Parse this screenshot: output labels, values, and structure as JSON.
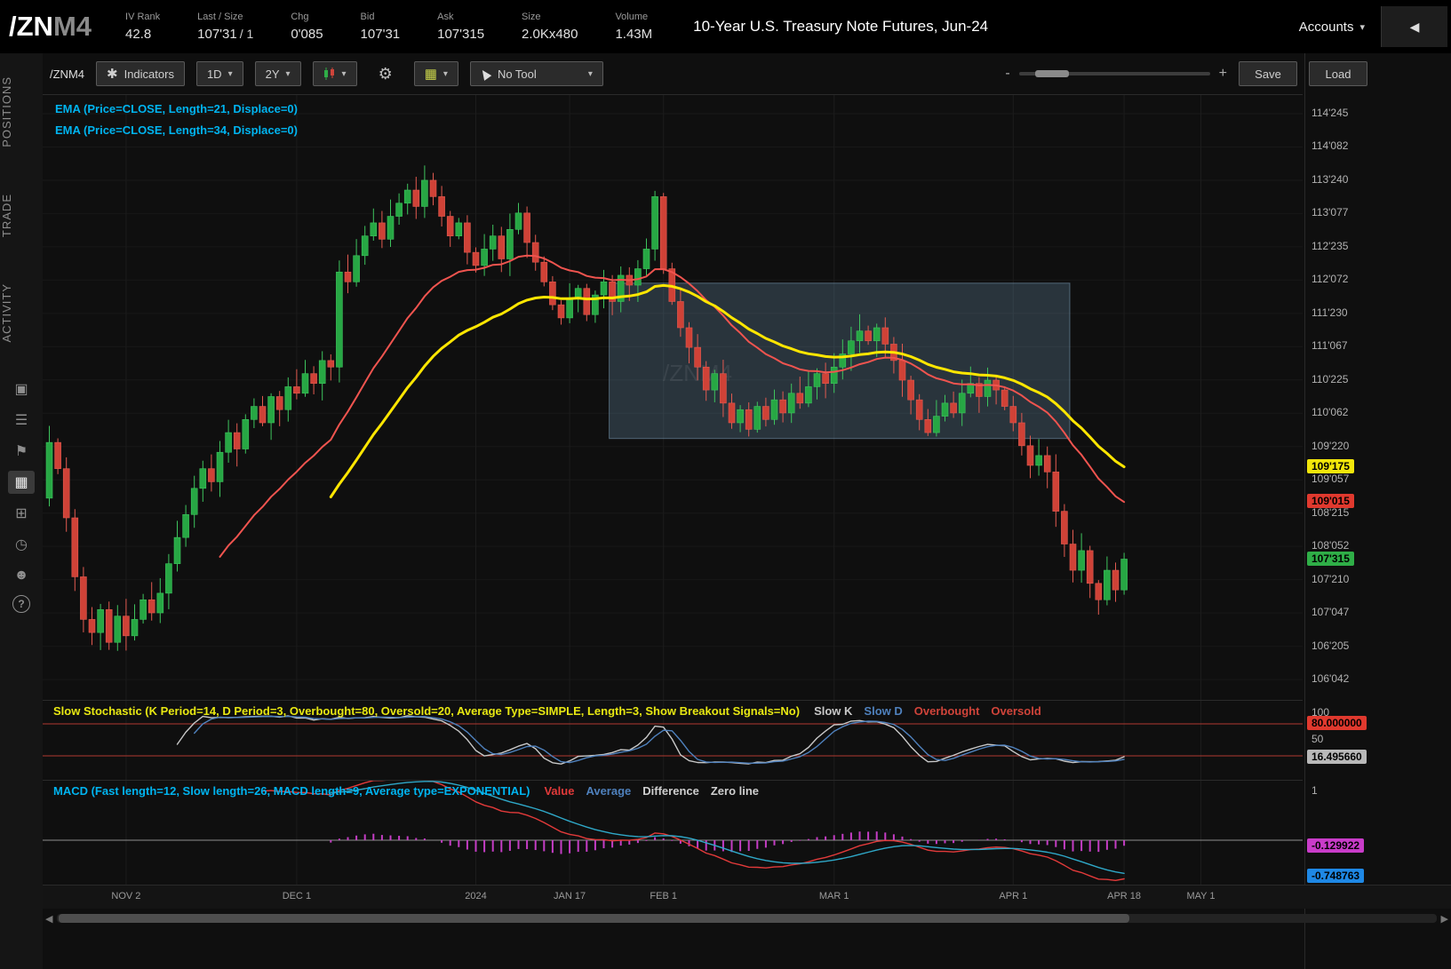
{
  "header": {
    "symbol": "/ZN",
    "symbol_month": "M4",
    "stats": [
      {
        "label": "IV Rank",
        "value": "42.8",
        "color": "plain"
      },
      {
        "label": "Last / Size",
        "value": "107'31",
        "suffix": "/ 1",
        "color": "red"
      },
      {
        "label": "Chg",
        "value": "0'085",
        "color": "green"
      },
      {
        "label": "Bid",
        "value": "107'31",
        "color": "red"
      },
      {
        "label": "Ask",
        "value": "107'315",
        "color": "red"
      },
      {
        "label": "Size",
        "value": "2.0Kx480",
        "color": "plain"
      },
      {
        "label": "Volume",
        "value": "1.43M",
        "color": "plain"
      }
    ],
    "contract_title": "10-Year U.S. Treasury Note Futures, Jun-24",
    "accounts_label": "Accounts"
  },
  "icons": {
    "caret_down": "▾",
    "gear": "⚙",
    "grid": "▦",
    "indicators": "✱",
    "minus": "-",
    "plus": "+",
    "collapse": "◀",
    "scroll_left": "◀",
    "scroll_right": "▶"
  },
  "sidebar": {
    "tabs": [
      {
        "label": "POSITIONS"
      },
      {
        "label": "TRADE"
      },
      {
        "label": "ACTIVITY"
      }
    ],
    "icons": [
      {
        "name": "monitor-icon",
        "glyph": "▣",
        "active": false
      },
      {
        "name": "list-icon",
        "glyph": "☰",
        "active": false
      },
      {
        "name": "trade-flag-icon",
        "glyph": "⚑",
        "active": false
      },
      {
        "name": "chart-grid-icon",
        "glyph": "▦",
        "active": true
      },
      {
        "name": "dashboard-icon",
        "glyph": "⊞",
        "active": false
      },
      {
        "name": "history-clock-icon",
        "glyph": "◷",
        "active": false
      },
      {
        "name": "community-icon",
        "glyph": "☻",
        "active": false
      },
      {
        "name": "help-icon",
        "glyph": "?",
        "active": false
      }
    ]
  },
  "toolbar": {
    "symbol_label": "/ZNM4",
    "indicators_label": "Indicators",
    "timeframe": "1D",
    "range": "2Y",
    "tool_label": "No Tool",
    "save_label": "Save",
    "load_label": "Load"
  },
  "chart_data": {
    "type": "candlestick",
    "symbol": "/ZNM4",
    "watermark": "/ZNM4",
    "indicator_labels": [
      "EMA (Price=CLOSE, Length=21, Displace=0)",
      "EMA (Price=CLOSE, Length=34, Displace=0)"
    ],
    "first_open": 108.9,
    "closes": [
      109.75,
      109.35,
      108.6,
      107.7,
      107.05,
      106.85,
      107.2,
      106.7,
      107.1,
      106.8,
      107.05,
      107.35,
      107.15,
      107.45,
      107.9,
      108.3,
      108.65,
      109.05,
      109.35,
      109.15,
      109.6,
      109.9,
      109.65,
      110.1,
      110.3,
      110.05,
      110.45,
      110.25,
      110.6,
      110.5,
      110.8,
      110.65,
      111.0,
      110.9,
      112.35,
      112.2,
      112.6,
      112.9,
      113.1,
      112.85,
      113.2,
      113.4,
      113.6,
      113.35,
      113.75,
      113.5,
      113.2,
      112.9,
      113.1,
      112.65,
      112.45,
      112.7,
      112.9,
      112.55,
      113.0,
      113.25,
      112.8,
      112.5,
      112.2,
      111.85,
      111.65,
      111.95,
      112.1,
      111.7,
      112.0,
      112.2,
      111.9,
      112.3,
      112.15,
      112.4,
      112.7,
      113.5,
      112.4,
      111.9,
      111.5,
      111.2,
      110.9,
      110.55,
      110.8,
      110.35,
      110.05,
      110.25,
      109.95,
      110.3,
      110.1,
      110.4,
      110.2,
      110.5,
      110.35,
      110.6,
      110.8,
      110.65,
      110.9,
      111.1,
      111.3,
      111.45,
      111.3,
      111.5,
      111.25,
      111.0,
      110.7,
      110.4,
      110.1,
      109.9,
      110.15,
      110.35,
      110.2,
      110.5,
      110.65,
      110.45,
      110.7,
      110.55,
      110.3,
      110.05,
      109.7,
      109.4,
      109.55,
      109.3,
      108.7,
      108.2,
      107.8,
      108.1,
      107.6,
      107.35,
      107.8,
      107.5,
      107.97
    ],
    "emas": [
      {
        "length": 21,
        "color": "#f0544f"
      },
      {
        "length": 34,
        "color": "#ffe600"
      }
    ],
    "price_axis": {
      "labels": [
        [
          "114'245",
          114.766
        ],
        [
          "114'082",
          114.258
        ],
        [
          "113'240",
          113.75
        ],
        [
          "113'077",
          113.242
        ],
        [
          "112'235",
          112.734
        ],
        [
          "112'072",
          112.227
        ],
        [
          "111'230",
          111.719
        ],
        [
          "111'067",
          111.211
        ],
        [
          "110'225",
          110.703
        ],
        [
          "110'062",
          110.195
        ],
        [
          "109'220",
          109.688
        ],
        [
          "109'057",
          109.18
        ],
        [
          "108'215",
          108.672
        ],
        [
          "108'052",
          108.164
        ],
        [
          "107'210",
          107.656
        ],
        [
          "107'047",
          107.148
        ],
        [
          "106'205",
          106.641
        ],
        [
          "106'042",
          106.133
        ]
      ],
      "badges": [
        {
          "text": "109'175",
          "anchor": "ema34",
          "style": "yellow"
        },
        {
          "text": "109'015",
          "anchor": "ema21",
          "style": "red"
        },
        {
          "text": "107'315",
          "anchor": "last",
          "style": "green"
        }
      ]
    },
    "x_axis": [
      {
        "text": "NOV 2",
        "bar": 9
      },
      {
        "text": "DEC 1",
        "bar": 29
      },
      {
        "text": "2024",
        "bar": 50
      },
      {
        "text": "JAN 17",
        "bar": 61
      },
      {
        "text": "FEB 1",
        "bar": 72
      },
      {
        "text": "MAR 1",
        "bar": 92
      },
      {
        "text": "APR 1",
        "bar": 113
      },
      {
        "text": "APR 18",
        "bar": 126
      },
      {
        "text": "MAY 1",
        "bar": 135
      }
    ],
    "selection_box": {
      "from_bar": 66,
      "to_bar": 120,
      "top_price": 112.18,
      "bottom_price": 109.81
    },
    "last_price_display": "107'315"
  },
  "studies": {
    "stochastic": {
      "title": "Slow Stochastic (K Period=14, D Period=3, Overbought=80, Oversold=20, Average Type=SIMPLE, Length=3, Show Breakout Signals=No)",
      "legend": [
        {
          "label": "Slow K",
          "color": "#c8c8c8"
        },
        {
          "label": "Slow D",
          "color": "#4f81bd"
        },
        {
          "label": "Overbought",
          "color": "#d0443a"
        },
        {
          "label": "Oversold",
          "color": "#d0443a"
        }
      ],
      "overbought": 80,
      "oversold": 20,
      "axis_labels": [
        {
          "text": "100",
          "value": 100
        },
        {
          "text": "50",
          "value": 50
        }
      ],
      "badges": [
        {
          "text": "80.000000",
          "value": 80,
          "style": "red"
        },
        {
          "text": "16.495660",
          "value": 16.4956,
          "style": "gray"
        }
      ]
    },
    "macd": {
      "title": "MACD (Fast length=12, Slow length=26, MACD length=9, Average type=EXPONENTIAL)",
      "legend": [
        {
          "label": "Value",
          "color": "#e23a3a"
        },
        {
          "label": "Average",
          "color": "#4f81bd"
        },
        {
          "label": "Difference",
          "color": "#cfcfcf"
        },
        {
          "label": "Zero line",
          "color": "#cfcfcf"
        }
      ],
      "axis_labels": [
        {
          "text": "1",
          "value": 1
        }
      ],
      "badges": [
        {
          "text": "-0.129922",
          "value": -0.129922,
          "style": "magenta"
        },
        {
          "text": "-0.748763",
          "value": -0.748763,
          "style": "blue"
        }
      ]
    }
  }
}
